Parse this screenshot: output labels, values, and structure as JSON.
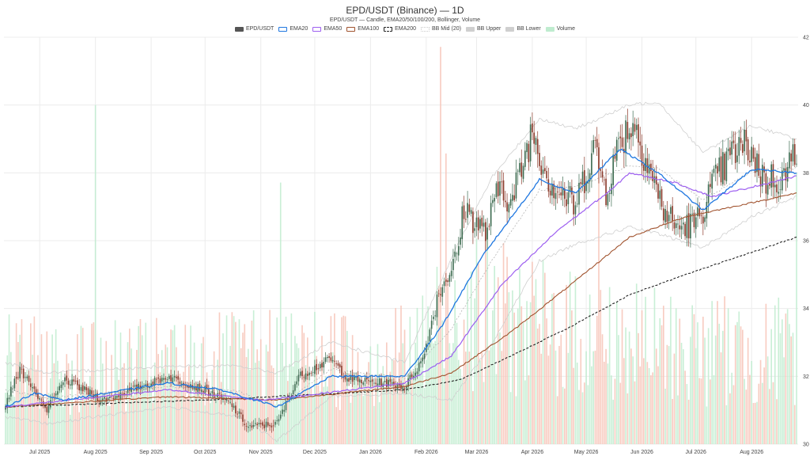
{
  "chart_data": {
    "type": "candlestick",
    "title": "EPD/USDT (Binance) — 1D",
    "subtitle": "EPD/USDT — Candle, EMA20/50/100/200, Bollinger, Volume",
    "legend": [
      {
        "key": "candles",
        "label": "EPD/USDT",
        "color": "#555555",
        "style": "fill"
      },
      {
        "key": "ema20",
        "label": "EMA20",
        "color": "#1f77e0",
        "style": "line"
      },
      {
        "key": "ema50",
        "label": "EMA50",
        "color": "#9d5ff0",
        "style": "line"
      },
      {
        "key": "ema100",
        "label": "EMA100",
        "color": "#a0522d",
        "style": "line"
      },
      {
        "key": "ema200",
        "label": "EMA200",
        "color": "#222222",
        "style": "dashed"
      },
      {
        "key": "bbmid",
        "label": "BB Mid (20)",
        "color": "#c9c9c9",
        "style": "dotted"
      },
      {
        "key": "bbupper",
        "label": "BB Upper",
        "color": "#cfcfcf",
        "style": "fill"
      },
      {
        "key": "bblower",
        "label": "BB Lower",
        "color": "#cfcfcf",
        "style": "fill"
      },
      {
        "key": "volume",
        "label": "Volume",
        "color": "#bfeccf",
        "style": "fill"
      }
    ],
    "x_ticks": [
      "Jul 2025",
      "Aug 2025",
      "Sep 2025",
      "Oct 2025",
      "Nov 2025",
      "Dec 2025",
      "Jan 2026",
      "Feb 2026",
      "Mar 2026",
      "Apr 2026",
      "May 2026",
      "Jun 2026",
      "Jul 2026",
      "Aug 2026"
    ],
    "x_range": [
      "2025-06-12",
      "2026-08-26"
    ],
    "y_axis": {
      "position": "right",
      "range": [
        30,
        42
      ],
      "ticks": [
        "30",
        "32",
        "34",
        "36",
        "38",
        "40",
        "42"
      ]
    },
    "grid": true,
    "price_path_anchors": [
      {
        "date": "2025-06-12",
        "close": 31.2
      },
      {
        "date": "2025-06-20",
        "close": 32.2
      },
      {
        "date": "2025-07-05",
        "close": 31.0
      },
      {
        "date": "2025-07-15",
        "close": 31.9
      },
      {
        "date": "2025-08-05",
        "close": 31.3
      },
      {
        "date": "2025-09-01",
        "close": 31.8
      },
      {
        "date": "2025-09-10",
        "close": 32.0
      },
      {
        "date": "2025-10-01",
        "close": 31.6
      },
      {
        "date": "2025-10-15",
        "close": 31.2
      },
      {
        "date": "2025-10-25",
        "close": 30.5
      },
      {
        "date": "2025-11-10",
        "close": 30.6
      },
      {
        "date": "2025-11-22",
        "close": 32.0
      },
      {
        "date": "2025-12-10",
        "close": 32.5
      },
      {
        "date": "2025-12-20",
        "close": 31.9
      },
      {
        "date": "2026-01-10",
        "close": 31.8
      },
      {
        "date": "2026-01-20",
        "close": 31.7
      },
      {
        "date": "2026-01-30",
        "close": 32.5
      },
      {
        "date": "2026-02-08",
        "close": 34.5
      },
      {
        "date": "2026-02-18",
        "close": 35.5
      },
      {
        "date": "2026-02-22",
        "close": 37.0
      },
      {
        "date": "2026-03-06",
        "close": 36.2
      },
      {
        "date": "2026-03-15",
        "close": 37.8
      },
      {
        "date": "2026-03-20",
        "close": 37.0
      },
      {
        "date": "2026-04-01",
        "close": 39.3
      },
      {
        "date": "2026-04-10",
        "close": 37.8
      },
      {
        "date": "2026-04-25",
        "close": 37.0
      },
      {
        "date": "2026-05-05",
        "close": 38.8
      },
      {
        "date": "2026-05-12",
        "close": 37.5
      },
      {
        "date": "2026-05-20",
        "close": 39.0
      },
      {
        "date": "2026-05-27",
        "close": 39.5
      },
      {
        "date": "2026-06-05",
        "close": 38.2
      },
      {
        "date": "2026-06-12",
        "close": 37.0
      },
      {
        "date": "2026-06-20",
        "close": 36.4
      },
      {
        "date": "2026-07-01",
        "close": 36.5
      },
      {
        "date": "2026-07-12",
        "close": 37.8
      },
      {
        "date": "2026-07-22",
        "close": 38.6
      },
      {
        "date": "2026-07-30",
        "close": 38.8
      },
      {
        "date": "2026-08-08",
        "close": 37.8
      },
      {
        "date": "2026-08-20",
        "close": 37.9
      },
      {
        "date": "2026-08-26",
        "close": 38.8
      }
    ],
    "ema_anchors": {
      "ema20": [
        {
          "date": "2025-06-12",
          "value": 31.1
        },
        {
          "date": "2025-06-28",
          "value": 31.5
        },
        {
          "date": "2025-07-15",
          "value": 31.3
        },
        {
          "date": "2025-09-10",
          "value": 31.8
        },
        {
          "date": "2025-10-10",
          "value": 31.6
        },
        {
          "date": "2025-11-10",
          "value": 31.1
        },
        {
          "date": "2025-12-10",
          "value": 32.0
        },
        {
          "date": "2026-01-20",
          "value": 32.0
        },
        {
          "date": "2026-02-10",
          "value": 33.5
        },
        {
          "date": "2026-03-05",
          "value": 35.6
        },
        {
          "date": "2026-04-05",
          "value": 37.8
        },
        {
          "date": "2026-04-25",
          "value": 37.4
        },
        {
          "date": "2026-05-20",
          "value": 38.7
        },
        {
          "date": "2026-06-10",
          "value": 38.0
        },
        {
          "date": "2026-07-05",
          "value": 36.9
        },
        {
          "date": "2026-08-01",
          "value": 38.1
        },
        {
          "date": "2026-08-26",
          "value": 38.0
        }
      ],
      "ema50": [
        {
          "date": "2025-06-12",
          "value": 31.1
        },
        {
          "date": "2025-09-10",
          "value": 31.6
        },
        {
          "date": "2025-11-01",
          "value": 31.3
        },
        {
          "date": "2025-11-20",
          "value": 31.4
        },
        {
          "date": "2026-01-20",
          "value": 31.8
        },
        {
          "date": "2026-02-15",
          "value": 32.6
        },
        {
          "date": "2026-03-15",
          "value": 34.7
        },
        {
          "date": "2026-04-15",
          "value": 36.3
        },
        {
          "date": "2026-05-15",
          "value": 37.5
        },
        {
          "date": "2026-05-25",
          "value": 38.0
        },
        {
          "date": "2026-06-20",
          "value": 37.7
        },
        {
          "date": "2026-07-10",
          "value": 37.3
        },
        {
          "date": "2026-08-26",
          "value": 37.9
        }
      ],
      "ema100": [
        {
          "date": "2025-06-12",
          "value": 31.1
        },
        {
          "date": "2025-09-10",
          "value": 31.4
        },
        {
          "date": "2025-11-10",
          "value": 31.3
        },
        {
          "date": "2026-01-20",
          "value": 31.7
        },
        {
          "date": "2026-02-15",
          "value": 32.1
        },
        {
          "date": "2026-03-20",
          "value": 33.3
        },
        {
          "date": "2026-04-20",
          "value": 34.6
        },
        {
          "date": "2026-05-25",
          "value": 36.1
        },
        {
          "date": "2026-06-25",
          "value": 36.7
        },
        {
          "date": "2026-08-26",
          "value": 37.4
        }
      ],
      "ema200": [
        {
          "date": "2025-06-12",
          "value": 31.1
        },
        {
          "date": "2025-10-01",
          "value": 31.3
        },
        {
          "date": "2026-01-20",
          "value": 31.6
        },
        {
          "date": "2026-02-20",
          "value": 31.9
        },
        {
          "date": "2026-03-20",
          "value": 32.6
        },
        {
          "date": "2026-04-20",
          "value": 33.4
        },
        {
          "date": "2026-05-25",
          "value": 34.4
        },
        {
          "date": "2026-06-25",
          "value": 35.0
        },
        {
          "date": "2026-08-26",
          "value": 36.1
        }
      ]
    },
    "bollinger_anchors": {
      "upper": [
        {
          "date": "2025-06-12",
          "value": 32.4
        },
        {
          "date": "2025-07-05",
          "value": 32.1
        },
        {
          "date": "2025-09-10",
          "value": 32.3
        },
        {
          "date": "2025-10-20",
          "value": 32.3
        },
        {
          "date": "2025-11-10",
          "value": 32.1
        },
        {
          "date": "2025-12-10",
          "value": 33.0
        },
        {
          "date": "2026-01-20",
          "value": 32.4
        },
        {
          "date": "2026-02-15",
          "value": 35.5
        },
        {
          "date": "2026-03-10",
          "value": 37.9
        },
        {
          "date": "2026-04-05",
          "value": 39.6
        },
        {
          "date": "2026-04-25",
          "value": 39.3
        },
        {
          "date": "2026-05-25",
          "value": 40.0
        },
        {
          "date": "2026-06-10",
          "value": 40.1
        },
        {
          "date": "2026-07-05",
          "value": 38.6
        },
        {
          "date": "2026-08-01",
          "value": 39.4
        },
        {
          "date": "2026-08-26",
          "value": 39.0
        }
      ],
      "lower": [
        {
          "date": "2025-06-12",
          "value": 30.8
        },
        {
          "date": "2025-07-05",
          "value": 30.6
        },
        {
          "date": "2025-09-10",
          "value": 31.1
        },
        {
          "date": "2025-10-20",
          "value": 30.8
        },
        {
          "date": "2025-11-10",
          "value": 30.1
        },
        {
          "date": "2025-12-10",
          "value": 31.4
        },
        {
          "date": "2026-01-20",
          "value": 31.5
        },
        {
          "date": "2026-02-15",
          "value": 31.3
        },
        {
          "date": "2026-03-10",
          "value": 33.0
        },
        {
          "date": "2026-04-05",
          "value": 35.4
        },
        {
          "date": "2026-04-25",
          "value": 35.9
        },
        {
          "date": "2026-05-25",
          "value": 36.4
        },
        {
          "date": "2026-06-10",
          "value": 36.2
        },
        {
          "date": "2026-07-05",
          "value": 35.8
        },
        {
          "date": "2026-08-01",
          "value": 36.7
        },
        {
          "date": "2026-08-26",
          "value": 37.3
        }
      ]
    },
    "volume_scale_max": 42000000,
    "volume_anchors": [
      {
        "date": "2025-06-12",
        "value": 9000000
      },
      {
        "date": "2025-08-01",
        "value": 8500000
      },
      {
        "date": "2025-10-01",
        "value": 9000000
      },
      {
        "date": "2025-12-01",
        "value": 9500000
      },
      {
        "date": "2026-01-25",
        "value": 10000000
      },
      {
        "date": "2026-02-20",
        "value": 16000000
      },
      {
        "date": "2026-04-01",
        "value": 13000000
      },
      {
        "date": "2026-06-01",
        "value": 11000000
      },
      {
        "date": "2026-08-26",
        "value": 10000000
      }
    ],
    "volume_spikes": [
      {
        "date": "2025-08-01",
        "value": 35000000
      },
      {
        "date": "2025-11-12",
        "value": 27000000
      },
      {
        "date": "2026-02-09",
        "value": 41000000
      },
      {
        "date": "2026-02-12",
        "value": 30000000
      },
      {
        "date": "2026-05-08",
        "value": 32000000
      },
      {
        "date": "2026-08-26",
        "value": 28000000
      }
    ],
    "colors": {
      "up": "#3d6b50",
      "down": "#8b3a2b",
      "volume_up": "#bfeccf",
      "volume_down": "#f7c3b6",
      "ema20": "#1f77e0",
      "ema50": "#9d5ff0",
      "ema100": "#a0522d",
      "ema200": "#222222",
      "bb": "#cfcfcf",
      "bb_mid": "#b5b5b5",
      "grid": "#ececec"
    }
  }
}
